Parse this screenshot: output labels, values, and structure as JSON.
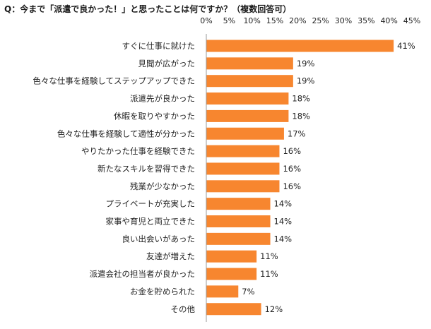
{
  "question": "Q：今まで「派遣で良かった！」と思ったことは何ですか？（複数回答可）",
  "colors": {
    "bar": "#f7862f",
    "axis": "#9a9a9a",
    "text": "#222222"
  },
  "chart_data": {
    "type": "bar",
    "orientation": "horizontal",
    "title": "",
    "xlabel": "",
    "ylabel": "",
    "xlim": [
      0,
      45
    ],
    "x_tick_values": [
      0,
      5,
      10,
      15,
      20,
      25,
      30,
      35,
      40,
      45
    ],
    "x_tick_labels": [
      "0%",
      "5%",
      "10%",
      "15%",
      "20%",
      "25%",
      "30%",
      "35%",
      "40%",
      "45%"
    ],
    "x_axis_position": "top",
    "grid": false,
    "legend": "none",
    "categories": [
      "すぐに仕事に就けた",
      "見聞が広がった",
      "色々な仕事を経験してステップアップできた",
      "派遣先が良かった",
      "休暇を取りやすかった",
      "色々な仕事を経験して適性が分かった",
      "やりたかった仕事を経験できた",
      "新たなスキルを習得できた",
      "残業が少なかった",
      "プライベートが充実した",
      "家事や育児と両立できた",
      "良い出会いがあった",
      "友達が増えた",
      "派遣会社の担当者が良かった",
      "お金を貯められた",
      "その他"
    ],
    "values": [
      41,
      19,
      19,
      18,
      18,
      17,
      16,
      16,
      16,
      14,
      14,
      14,
      11,
      11,
      7,
      12
    ],
    "value_labels": [
      "41%",
      "19%",
      "19%",
      "18%",
      "18%",
      "17%",
      "16%",
      "16%",
      "16%",
      "14%",
      "14%",
      "14%",
      "11%",
      "11%",
      "7%",
      "12%"
    ]
  }
}
